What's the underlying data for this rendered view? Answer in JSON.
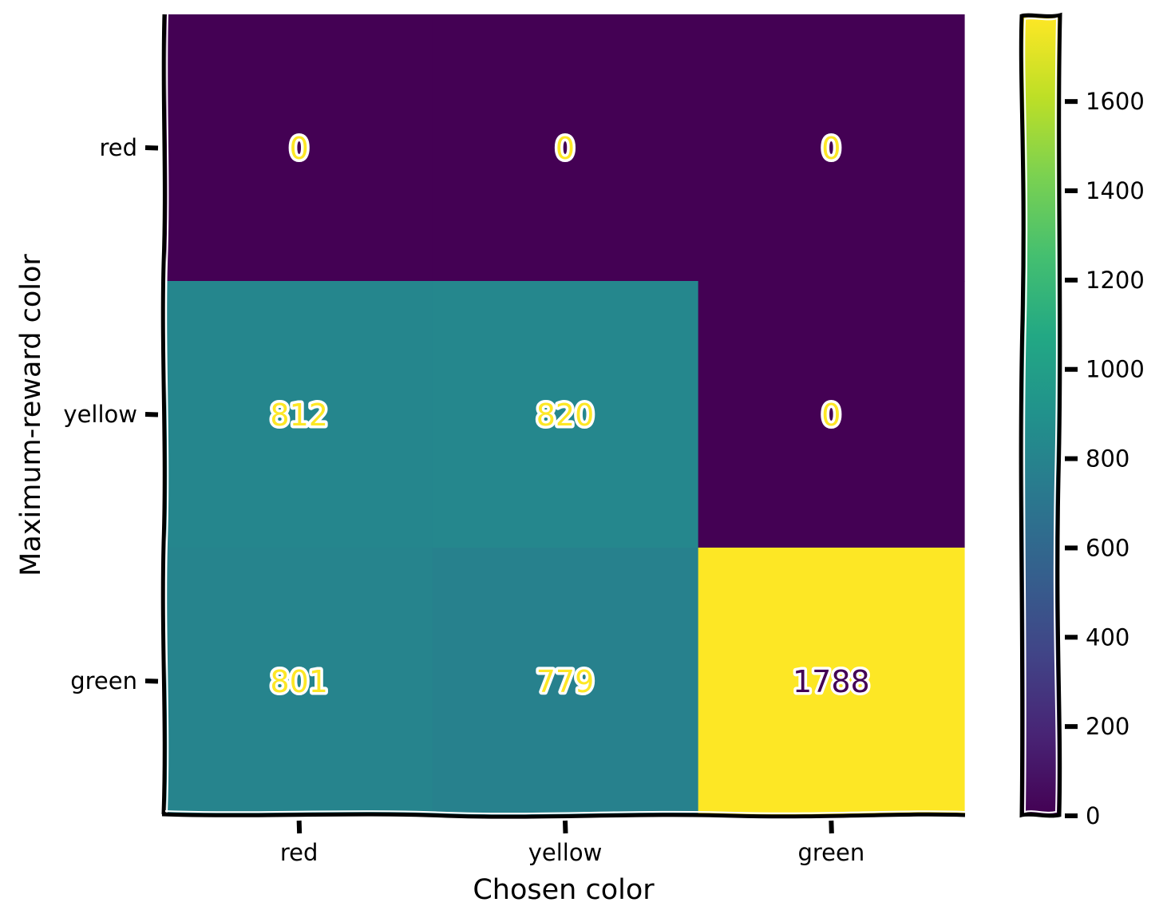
{
  "chart_data": {
    "type": "heatmap",
    "title": "",
    "xlabel": "Chosen color",
    "ylabel": "Maximum-reward color",
    "x_categories": [
      "red",
      "yellow",
      "green"
    ],
    "y_categories": [
      "red",
      "yellow",
      "green"
    ],
    "values": [
      [
        0,
        0,
        0
      ],
      [
        812,
        820,
        0
      ],
      [
        801,
        779,
        1788
      ]
    ],
    "value_labels": [
      [
        "0",
        "0",
        "0"
      ],
      [
        "812",
        "820",
        "0"
      ],
      [
        "801",
        "779",
        "1788"
      ]
    ],
    "colormap": "viridis",
    "colorbar": {
      "range": [
        0,
        1788
      ],
      "ticks": [
        0,
        200,
        400,
        600,
        800,
        1000,
        1200,
        1400,
        1600
      ],
      "tick_labels": [
        "0",
        "200",
        "400",
        "600",
        "800",
        "1000",
        "1200",
        "1400",
        "1600"
      ]
    },
    "text_colors": {
      "on_dark": "#fde725",
      "on_light": "#440154"
    }
  }
}
